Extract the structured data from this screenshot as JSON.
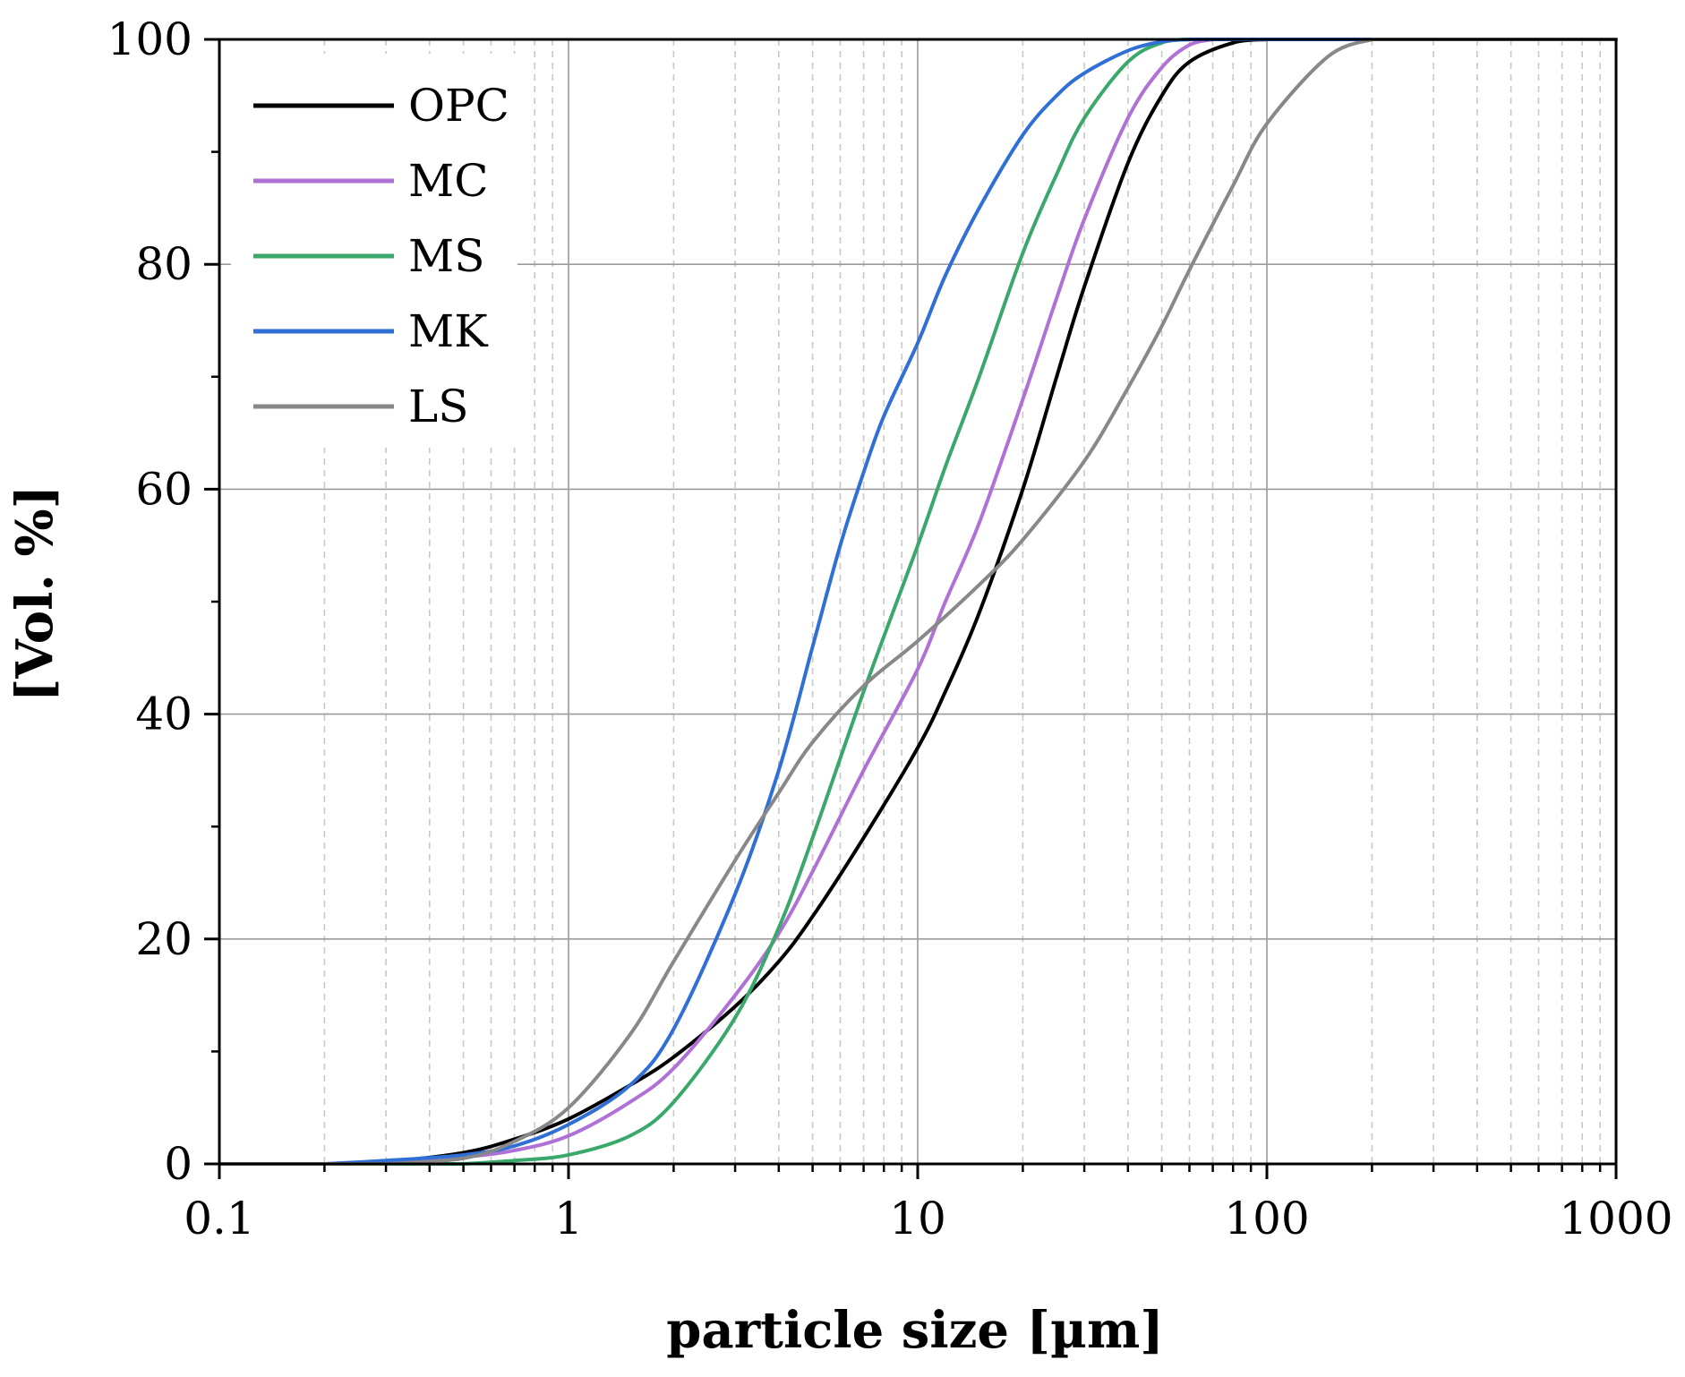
{
  "chart_data": {
    "type": "line",
    "title": "",
    "xlabel": "particle size [µm]",
    "ylabel": "[Vol. %]",
    "xscale": "log",
    "xlim": [
      0.1,
      1000
    ],
    "ylim": [
      0,
      100
    ],
    "x_ticks": [
      0.1,
      1,
      10,
      100,
      1000
    ],
    "x_tick_labels": [
      "0.1",
      "1",
      "10",
      "100",
      "1000"
    ],
    "y_ticks": [
      0,
      20,
      40,
      60,
      80,
      100
    ],
    "y_tick_labels": [
      "0",
      "20",
      "40",
      "60",
      "80",
      "100"
    ],
    "grid": true,
    "legend_position": "top-left",
    "series": [
      {
        "name": "OPC",
        "color": "#000000",
        "x": [
          0.2,
          0.3,
          0.5,
          0.7,
          1,
          1.5,
          2,
          3,
          4,
          5,
          7,
          10,
          12,
          15,
          20,
          25,
          30,
          40,
          50,
          60,
          80,
          100
        ],
        "y": [
          0,
          0.2,
          1.0,
          2.2,
          4.0,
          7.0,
          9.5,
          14.0,
          18.0,
          22.0,
          29.0,
          37.0,
          42.0,
          49.0,
          60.0,
          70.0,
          78.0,
          89.0,
          95.0,
          98.0,
          99.7,
          100
        ]
      },
      {
        "name": "MC",
        "color": "#b071d6",
        "x": [
          0.3,
          0.5,
          0.7,
          1,
          1.5,
          2,
          3,
          4,
          5,
          7,
          10,
          12,
          15,
          20,
          25,
          30,
          40,
          50,
          60,
          70
        ],
        "y": [
          0,
          0.6,
          1.2,
          2.5,
          5.5,
          8.5,
          15.0,
          20.5,
          26.0,
          35.0,
          44.0,
          50.0,
          57.0,
          68.0,
          77.0,
          84.0,
          93.0,
          97.5,
          99.5,
          100
        ]
      },
      {
        "name": "MS",
        "color": "#3aa86a",
        "x": [
          0.5,
          0.7,
          1,
          1.5,
          2,
          3,
          4,
          5,
          7,
          10,
          12,
          15,
          20,
          25,
          30,
          40,
          50,
          60
        ],
        "y": [
          0,
          0.3,
          0.8,
          2.5,
          5.5,
          13.0,
          21.0,
          29.0,
          42.0,
          55.0,
          62.0,
          70.0,
          81.0,
          88.0,
          93.0,
          98.0,
          99.7,
          100
        ]
      },
      {
        "name": "MK",
        "color": "#2f6fd6",
        "x": [
          0.2,
          0.3,
          0.5,
          0.7,
          1,
          1.5,
          2,
          3,
          4,
          5,
          6,
          7,
          8,
          10,
          12,
          15,
          20,
          25,
          30,
          40,
          50,
          60
        ],
        "y": [
          0,
          0.3,
          0.8,
          1.6,
          3.5,
          7.0,
          12.0,
          24.0,
          35.0,
          46.0,
          55.0,
          61.5,
          66.5,
          73.0,
          79.0,
          85.0,
          91.5,
          95.0,
          97.0,
          99.0,
          99.8,
          100
        ]
      },
      {
        "name": "LS",
        "color": "#888888",
        "x": [
          0.3,
          0.5,
          0.7,
          1,
          1.5,
          2,
          3,
          4,
          5,
          7,
          10,
          15,
          20,
          30,
          40,
          50,
          60,
          80,
          100,
          150,
          200
        ],
        "y": [
          0,
          0.5,
          2.0,
          5.0,
          11.5,
          18.0,
          27.0,
          33.0,
          37.5,
          42.5,
          46.5,
          51.5,
          55.5,
          62.5,
          69.0,
          74.5,
          79.5,
          87.0,
          92.5,
          98.5,
          100
        ]
      }
    ]
  }
}
